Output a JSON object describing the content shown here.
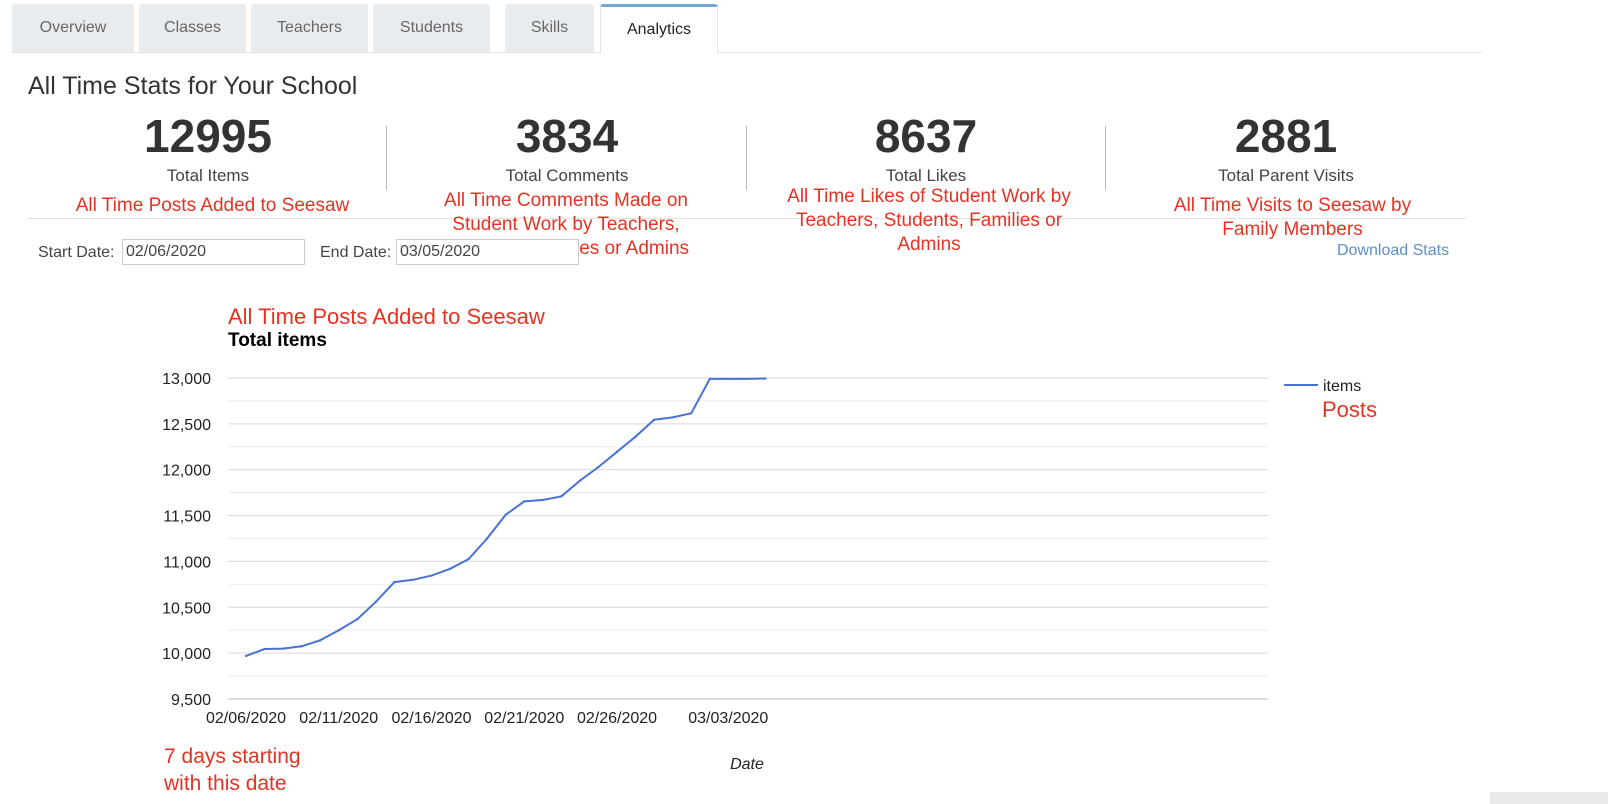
{
  "tabs": [
    {
      "label": "Overview",
      "active": false
    },
    {
      "label": "Classes",
      "active": false
    },
    {
      "label": "Teachers",
      "active": false
    },
    {
      "label": "Students",
      "active": false
    },
    {
      "label": "Skills",
      "active": false
    },
    {
      "label": "Analytics",
      "active": true
    }
  ],
  "page_title": "All Time Stats for Your School",
  "stats": [
    {
      "value": "12995",
      "label": "Total Items",
      "annotation": "All Time Posts Added to Seesaw"
    },
    {
      "value": "3834",
      "label": "Total Comments",
      "annotation": "All Time Comments Made on Student Work by Teachers, Students, Families or Admins"
    },
    {
      "value": "8637",
      "label": "Total Likes",
      "annotation": "All Time Likes of Student Work by Teachers, Students, Families or Admins"
    },
    {
      "value": "2881",
      "label": "Total Parent Visits",
      "annotation": "All Time Visits to Seesaw by Family Members"
    }
  ],
  "filters": {
    "start_label": "Start Date:",
    "start_value": "02/06/2020",
    "end_label": "End Date:",
    "end_value": "03/05/2020",
    "download_label": "Download Stats"
  },
  "annotations": {
    "chart_note": "All Time Posts Added to Seesaw",
    "legend_note": "Posts",
    "x_note": "7 days starting with this date"
  },
  "colors": {
    "accent": "#74a7d6",
    "line": "#4a72d1",
    "annotation": "#e53323",
    "link": "#5b8fc9"
  },
  "chart_data": {
    "type": "line",
    "title": "Total items",
    "xlabel": "Date",
    "ylabel": "",
    "ylim": [
      9500,
      13000
    ],
    "yticks": [
      9500,
      10000,
      10500,
      11000,
      11500,
      12000,
      12500,
      13000
    ],
    "ytick_labels": [
      "9,500",
      "10,000",
      "10,500",
      "11,000",
      "11,500",
      "12,000",
      "12,500",
      "13,000"
    ],
    "xticks": [
      "02/06/2020",
      "02/11/2020",
      "02/16/2020",
      "02/21/2020",
      "02/26/2020",
      "03/03/2020"
    ],
    "x": [
      "02/06/2020",
      "02/07/2020",
      "02/08/2020",
      "02/09/2020",
      "02/10/2020",
      "02/11/2020",
      "02/12/2020",
      "02/13/2020",
      "02/14/2020",
      "02/15/2020",
      "02/16/2020",
      "02/17/2020",
      "02/18/2020",
      "02/19/2020",
      "02/20/2020",
      "02/21/2020",
      "02/22/2020",
      "02/23/2020",
      "02/24/2020",
      "02/25/2020",
      "02/26/2020",
      "02/27/2020",
      "02/28/2020",
      "02/29/2020",
      "03/01/2020",
      "03/02/2020",
      "03/03/2020",
      "03/04/2020",
      "03/05/2020"
    ],
    "series": [
      {
        "name": "items",
        "values": [
          9970,
          10045,
          10050,
          10075,
          10140,
          10250,
          10370,
          10560,
          10775,
          10800,
          10845,
          10920,
          11025,
          11250,
          11510,
          11655,
          11670,
          11710,
          11880,
          12030,
          12195,
          12360,
          12545,
          12570,
          12615,
          12990,
          12990,
          12990,
          12995
        ]
      }
    ],
    "grid": true,
    "legend": "right"
  }
}
